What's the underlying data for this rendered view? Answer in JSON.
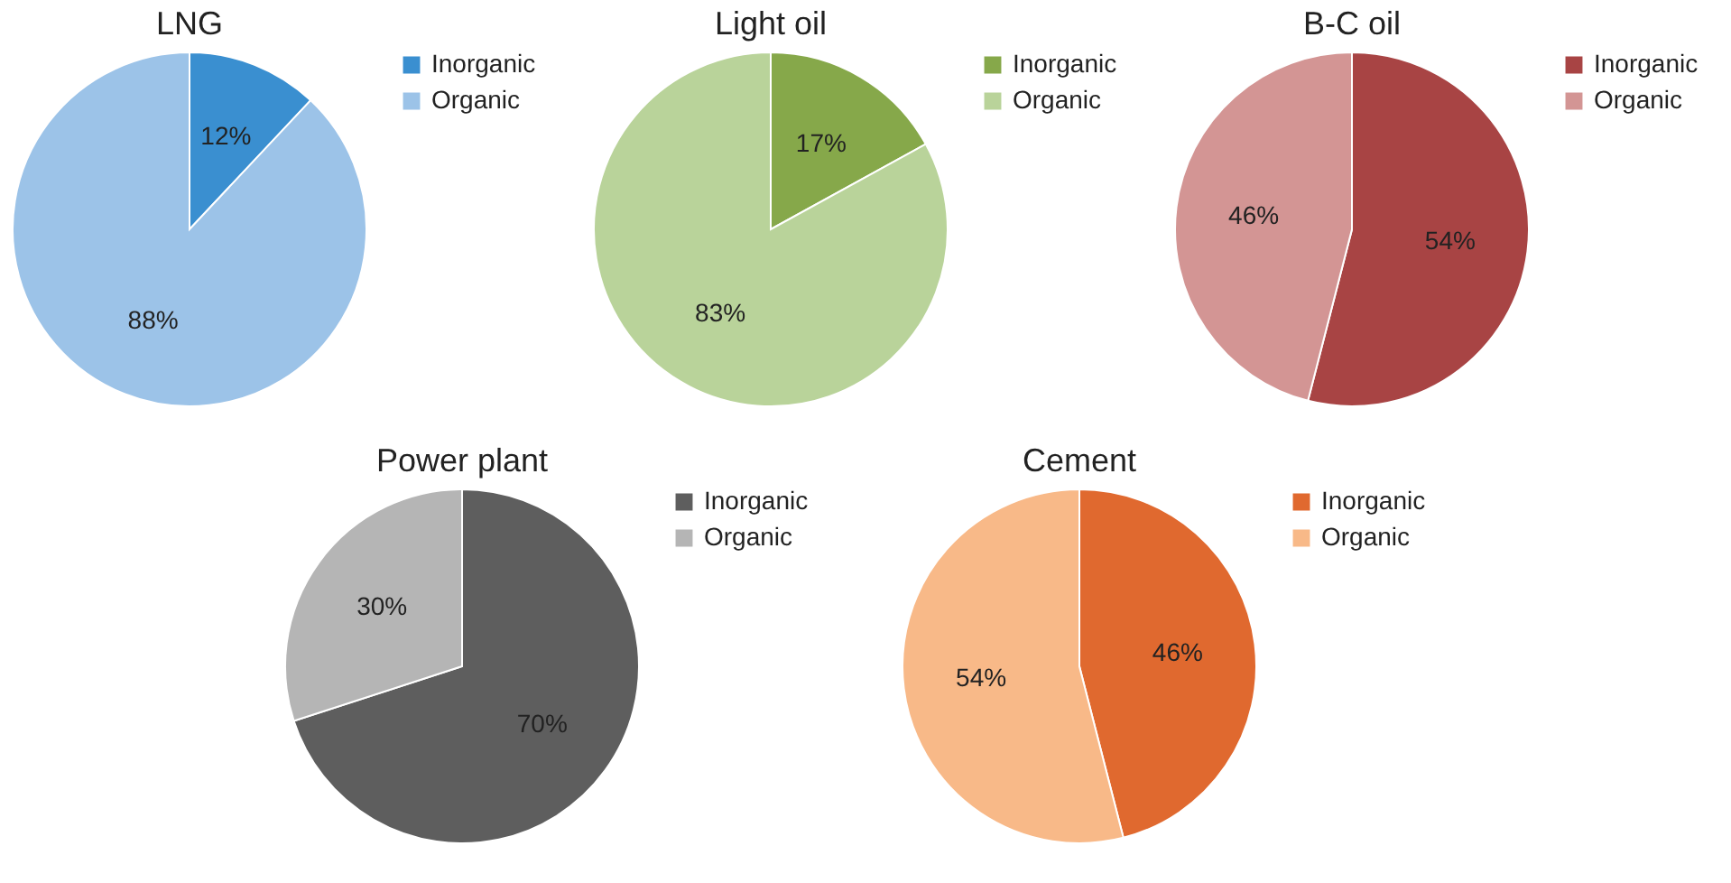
{
  "chart_data": [
    {
      "type": "pie",
      "title": "LNG",
      "categories": [
        "Inorganic",
        "Organic"
      ],
      "values": [
        12,
        88
      ],
      "colors": [
        "#3a8fd0",
        "#9cc3e8"
      ],
      "value_labels": [
        "12%",
        "88%"
      ],
      "legend": "right"
    },
    {
      "type": "pie",
      "title": "Light oil",
      "categories": [
        "Inorganic",
        "Organic"
      ],
      "values": [
        17,
        83
      ],
      "colors": [
        "#86a84a",
        "#b9d39a"
      ],
      "value_labels": [
        "17%",
        "83%"
      ],
      "legend": "right"
    },
    {
      "type": "pie",
      "title": "B-C oil",
      "categories": [
        "Inorganic",
        "Organic"
      ],
      "values": [
        54,
        46
      ],
      "colors": [
        "#a84444",
        "#d39594"
      ],
      "value_labels": [
        "54%",
        "46%"
      ],
      "legend": "right"
    },
    {
      "type": "pie",
      "title": "Power plant",
      "categories": [
        "Inorganic",
        "Organic"
      ],
      "values": [
        70,
        30
      ],
      "colors": [
        "#5e5e5e",
        "#b5b5b5"
      ],
      "value_labels": [
        "70%",
        "30%"
      ],
      "legend": "right"
    },
    {
      "type": "pie",
      "title": "Cement",
      "categories": [
        "Inorganic",
        "Organic"
      ],
      "values": [
        46,
        54
      ],
      "colors": [
        "#e0692f",
        "#f8b988"
      ],
      "value_labels": [
        "46%",
        "54%"
      ],
      "legend": "right"
    }
  ]
}
